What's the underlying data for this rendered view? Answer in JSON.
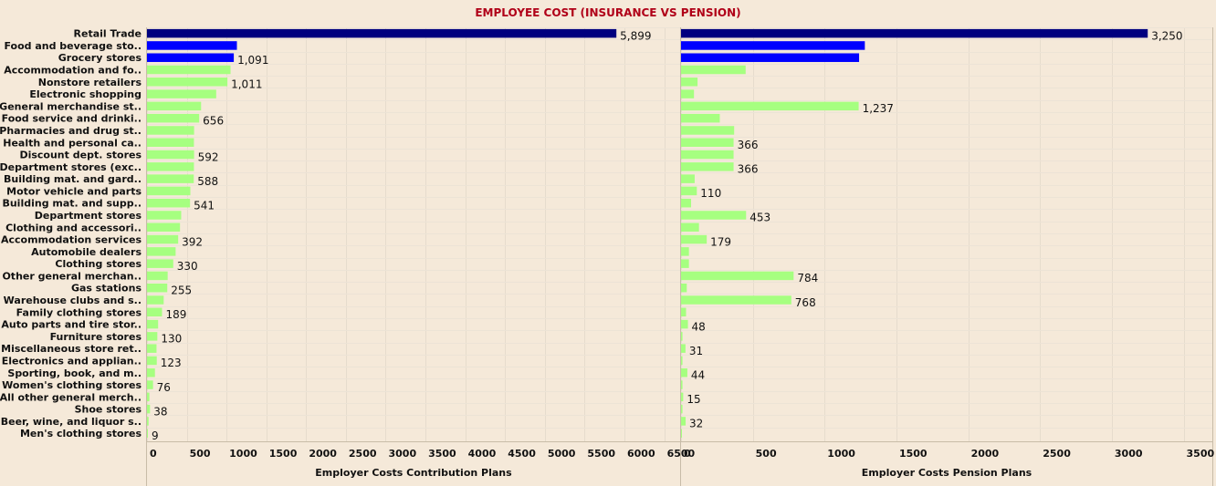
{
  "chart_data": {
    "type": "bar",
    "orientation": "horizontal",
    "title": "EMPLOYEE COST (INSURANCE VS PENSION)",
    "categories": [
      "Retail Trade",
      "Food and beverage sto..",
      "Grocery stores",
      "Accommodation and fo..",
      "Nonstore retailers",
      "Electronic shopping",
      "General merchandise st..",
      "Food service and drinki..",
      "Pharmacies and drug st..",
      "Health and personal ca..",
      "Discount dept. stores",
      "Department stores (exc..",
      "Building mat. and gard..",
      "Motor vehicle and parts",
      "Building mat. and supp..",
      "Department stores",
      "Clothing and accessori..",
      "Accommodation services",
      "Automobile dealers",
      "Clothing stores",
      "Other general merchan..",
      "Gas stations",
      "Warehouse clubs and s..",
      "Family clothing stores",
      "Auto parts and tire stor..",
      "Furniture stores",
      "Miscellaneous store ret..",
      "Electronics and applian..",
      "Sporting, book, and  m..",
      "Women's clothing stores",
      "All other general merch..",
      "Shoe stores",
      "Beer, wine, and liquor s..",
      "Men's clothing stores"
    ],
    "highlight": {
      "dark": [
        "Retail Trade"
      ],
      "mid": [
        "Food and beverage sto..",
        "Grocery stores"
      ]
    },
    "colors": {
      "dark": "#00007f",
      "mid": "#0000ff",
      "normal": "#a6ff80"
    },
    "panels": [
      {
        "xlabel": "Employer Costs Contribution Plans",
        "xlim": [
          0,
          6700
        ],
        "ticks": [
          0,
          500,
          1000,
          1500,
          2000,
          2500,
          3000,
          3500,
          4000,
          4500,
          5000,
          5500,
          6000,
          6500
        ],
        "values": [
          5899,
          1130,
          1091,
          1050,
          1011,
          870,
          680,
          656,
          592,
          590,
          592,
          590,
          588,
          545,
          541,
          430,
          415,
          392,
          360,
          330,
          260,
          255,
          210,
          189,
          140,
          130,
          120,
          123,
          100,
          76,
          30,
          38,
          20,
          9
        ],
        "labels": [
          "5,899",
          "",
          "1,091",
          "",
          "1,011",
          "",
          "",
          "656",
          "",
          "",
          "592",
          "",
          "588",
          "",
          "541",
          "",
          "",
          "392",
          "",
          "330",
          "",
          "255",
          "",
          "189",
          "",
          "130",
          "",
          "123",
          "",
          "76",
          "",
          "38",
          "",
          "9"
        ]
      },
      {
        "xlabel": "Employer Costs Pension Plans",
        "xlim": [
          0,
          3700
        ],
        "ticks": [
          0,
          500,
          1000,
          1500,
          2000,
          2500,
          3000,
          3500
        ],
        "values": [
          3250,
          1280,
          1240,
          450,
          115,
          90,
          1237,
          270,
          370,
          366,
          366,
          366,
          95,
          110,
          70,
          453,
          125,
          179,
          55,
          55,
          784,
          40,
          768,
          35,
          48,
          10,
          31,
          10,
          44,
          10,
          15,
          10,
          32,
          5
        ],
        "labels": [
          "3,250",
          "",
          "",
          "",
          "",
          "",
          "1,237",
          "",
          "",
          "366",
          "",
          "366",
          "",
          "110",
          "",
          "453",
          "",
          "179",
          "",
          "",
          "784",
          "",
          "768",
          "",
          "48",
          "",
          "31",
          "",
          "44",
          "",
          "15",
          "",
          "32",
          ""
        ]
      }
    ],
    "grid": true
  }
}
